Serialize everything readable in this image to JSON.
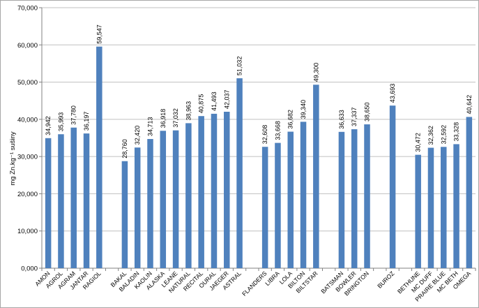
{
  "chart_data": {
    "type": "bar",
    "ylabel": "mg Zn.kg⁻¹ sušiny",
    "ylim": [
      0,
      70000
    ],
    "ytick_values": [
      0,
      10000,
      20000,
      30000,
      40000,
      50000,
      60000,
      70000
    ],
    "ytick_labels": [
      "0,000",
      "10,000",
      "20,000",
      "30,000",
      "40,000",
      "50,000",
      "60,000",
      "70,000"
    ],
    "grid": true,
    "legend": "none",
    "bar_color": "#4f81bd",
    "gridline_color": "#c0c0c0",
    "categories": [
      "AMON",
      "AGROL",
      "AGRAM",
      "JANTAR",
      "RAGIOL",
      "",
      "BAKAL",
      "BALADIN",
      "KAOLIN",
      "ALASKA",
      "LEANE",
      "NATURAL",
      "RECITAL",
      "OURAL",
      "JAEGER",
      "ASTRAL",
      "",
      "FLANDERS",
      "LIBRA",
      "LOLA",
      "BILTON",
      "BILTSTAR",
      "",
      "BATSMAN",
      "BOWLER",
      "BRINGTON",
      "",
      "BUROZ",
      "",
      "BETHUNE",
      "MC DUFF",
      "PRAIRE BLUE",
      "MC BETH",
      "OMEGA"
    ],
    "values": [
      34942,
      35993,
      37780,
      36197,
      59547,
      null,
      28760,
      32420,
      34713,
      36918,
      37032,
      38963,
      40875,
      41493,
      42037,
      51032,
      null,
      32608,
      33668,
      36682,
      39340,
      49300,
      null,
      36633,
      37337,
      38650,
      null,
      43693,
      null,
      30472,
      32362,
      32592,
      33328,
      40642
    ],
    "data_labels": [
      "34,942",
      "35,993",
      "37,780",
      "36,197",
      "59,547",
      "",
      "28,760",
      "32,420",
      "34,713",
      "36,918",
      "37,032",
      "38,963",
      "40,875",
      "41,493",
      "42,037",
      "51,032",
      "",
      "32,608",
      "33,668",
      "36,682",
      "39,340",
      "49,300",
      "",
      "36,633",
      "37,337",
      "38,650",
      "",
      "43,693",
      "",
      "30,472",
      "32,362",
      "32,592",
      "33,328",
      "40,642"
    ]
  }
}
